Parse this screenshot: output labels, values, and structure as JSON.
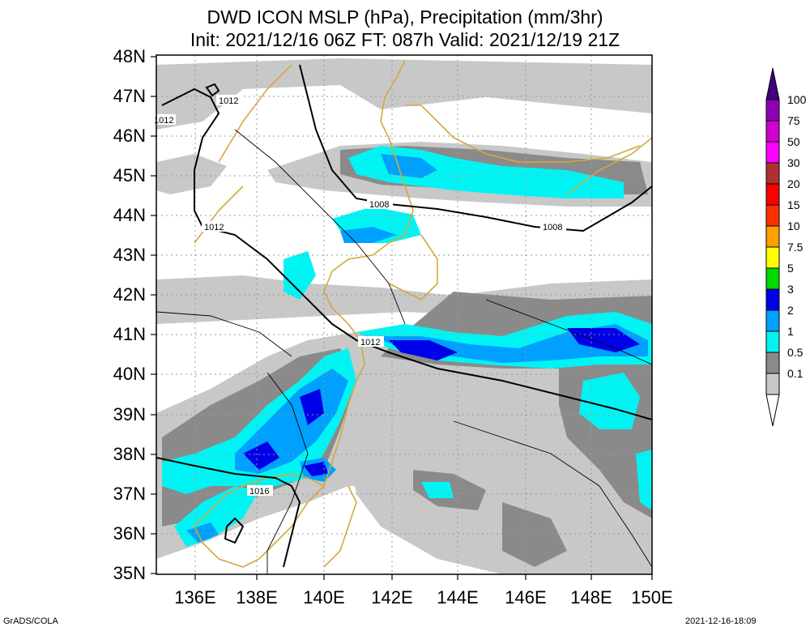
{
  "header": {
    "title_line1": "DWD ICON MSLP (hPa), Precipitation (mm/3hr)",
    "title_line2": "Init: 2021/12/16 06Z  FT: 087h  Valid: 2021/12/19 21Z"
  },
  "axes": {
    "lat_labels": [
      "48N",
      "47N",
      "46N",
      "45N",
      "44N",
      "43N",
      "42N",
      "41N",
      "40N",
      "39N",
      "38N",
      "37N",
      "36N",
      "35N"
    ],
    "lon_labels": [
      "136E",
      "138E",
      "140E",
      "142E",
      "144E",
      "146E",
      "148E",
      "150E"
    ]
  },
  "isobar_labels": [
    "1012",
    "1012",
    "1012",
    "1008",
    "1008",
    "1012",
    "1016"
  ],
  "colorbar": {
    "levels": [
      "100",
      "75",
      "50",
      "30",
      "20",
      "15",
      "10",
      "7.5",
      "5",
      "3",
      "2",
      "1",
      "0.5",
      "0.1"
    ],
    "colors": {
      "c01": "#c8c8c8",
      "c05": "#8a8a8a",
      "c1": "#00f4f4",
      "c2": "#00a0ff",
      "c3": "#0000e8",
      "c5": "#00d800",
      "c75": "#ffff00",
      "c10": "#ffa000",
      "c15": "#ff3000",
      "c20": "#ff0000",
      "c30": "#b03030",
      "c50": "#ff00ff",
      "c75b": "#d000d0",
      "c100": "#9000b0",
      "ctop": "#400080"
    }
  },
  "footer": {
    "left": "GrADS/COLA",
    "right": "2021-12-16-18:09"
  }
}
